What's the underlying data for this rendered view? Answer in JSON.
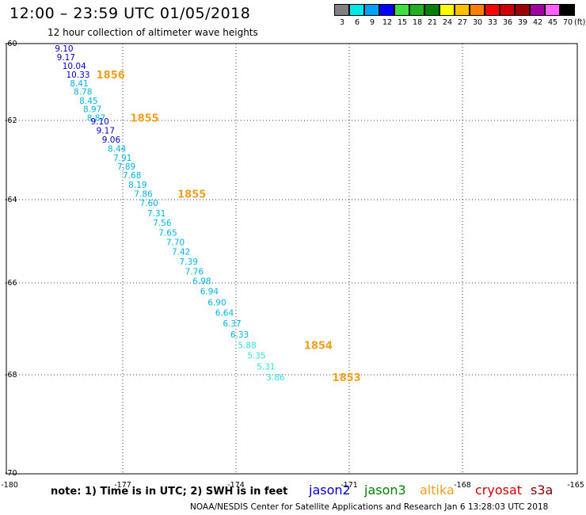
{
  "header": {
    "title": "12:00 – 23:59 UTC 01/05/2018",
    "subtitle": "12 hour collection of altimeter wave heights"
  },
  "legend": {
    "unit": "(ft)",
    "entries": [
      {
        "label": "3",
        "color": "#808080"
      },
      {
        "label": "6",
        "color": "#00e8e8"
      },
      {
        "label": "9",
        "color": "#00a0ff"
      },
      {
        "label": "12",
        "color": "#0000ff"
      },
      {
        "label": "15",
        "color": "#40e040"
      },
      {
        "label": "18",
        "color": "#20b020"
      },
      {
        "label": "21",
        "color": "#008000"
      },
      {
        "label": "24",
        "color": "#ffff00"
      },
      {
        "label": "27",
        "color": "#ffc000"
      },
      {
        "label": "30",
        "color": "#ff8000"
      },
      {
        "label": "33",
        "color": "#ff0000"
      },
      {
        "label": "36",
        "color": "#d00000"
      },
      {
        "label": "39",
        "color": "#a00000"
      },
      {
        "label": "42",
        "color": "#a000a0"
      },
      {
        "label": "45",
        "color": "#ff60ff"
      },
      {
        "label": "70",
        "color": "#000000"
      }
    ]
  },
  "map": {
    "lon_range": [
      -180,
      -165
    ],
    "lat_range": [
      -70,
      -60
    ],
    "x_ticks": [
      "-180",
      "-177",
      "-174",
      "-171",
      "-168",
      "-165"
    ],
    "x_tick_values": [
      -180,
      -177,
      -174,
      -171,
      -168,
      -165
    ],
    "y_ticks": [
      "-60",
      "-62",
      "-64",
      "-66",
      "-68",
      "-70"
    ],
    "y_tick_values": [
      -60,
      -62,
      -64,
      -66,
      -68,
      -70
    ],
    "grid": "dotted",
    "track_colors": {
      "navy": "#0000c8",
      "cyan": "#00b4e6",
      "light": "#30e0e0"
    },
    "observations": [
      {
        "text": "9.10",
        "lon": -178.8,
        "lat": -60.12,
        "color": "navy"
      },
      {
        "text": "9.17",
        "lon": -178.75,
        "lat": -60.35,
        "color": "navy"
      },
      {
        "text": "10.04",
        "lon": -178.6,
        "lat": -60.58,
        "color": "navy"
      },
      {
        "text": "10.33",
        "lon": -178.5,
        "lat": -60.8,
        "color": "navy"
      },
      {
        "text": "8.41",
        "lon": -178.4,
        "lat": -61.03,
        "color": "cyan"
      },
      {
        "text": "8.78",
        "lon": -178.3,
        "lat": -61.25,
        "color": "cyan"
      },
      {
        "text": "8.45",
        "lon": -178.15,
        "lat": -61.48,
        "color": "cyan"
      },
      {
        "text": "8.97",
        "lon": -178.05,
        "lat": -61.7,
        "color": "cyan"
      },
      {
        "text": "8.87",
        "lon": -177.95,
        "lat": -61.93,
        "color": "cyan"
      },
      {
        "text": "9.10",
        "lon": -177.85,
        "lat": -62.02,
        "color": "navy"
      },
      {
        "text": "9.17",
        "lon": -177.7,
        "lat": -62.25,
        "color": "navy"
      },
      {
        "text": "9.06",
        "lon": -177.55,
        "lat": -62.48,
        "color": "navy"
      },
      {
        "text": "8.44",
        "lon": -177.4,
        "lat": -62.71,
        "color": "cyan"
      },
      {
        "text": "7.91",
        "lon": -177.25,
        "lat": -62.94,
        "color": "cyan"
      },
      {
        "text": "7.89",
        "lon": -177.15,
        "lat": -63.16,
        "color": "cyan"
      },
      {
        "text": "7.68",
        "lon": -177.0,
        "lat": -63.38,
        "color": "cyan"
      },
      {
        "text": "8.19",
        "lon": -176.85,
        "lat": -63.62,
        "color": "cyan"
      },
      {
        "text": "7.86",
        "lon": -176.7,
        "lat": -63.85,
        "color": "cyan"
      },
      {
        "text": "7.60",
        "lon": -176.55,
        "lat": -64.08,
        "color": "cyan"
      },
      {
        "text": "7.31",
        "lon": -176.35,
        "lat": -64.32,
        "color": "cyan"
      },
      {
        "text": "7.56",
        "lon": -176.2,
        "lat": -64.55,
        "color": "cyan"
      },
      {
        "text": "7.65",
        "lon": -176.05,
        "lat": -64.79,
        "color": "cyan"
      },
      {
        "text": "7.70",
        "lon": -175.85,
        "lat": -65.02,
        "color": "cyan"
      },
      {
        "text": "7.42",
        "lon": -175.7,
        "lat": -65.25,
        "color": "cyan"
      },
      {
        "text": "7.39",
        "lon": -175.5,
        "lat": -65.49,
        "color": "cyan"
      },
      {
        "text": "7.76",
        "lon": -175.35,
        "lat": -65.72,
        "color": "cyan"
      },
      {
        "text": "6.98",
        "lon": -175.15,
        "lat": -65.95,
        "color": "cyan"
      },
      {
        "text": "6.94",
        "lon": -174.95,
        "lat": -66.18,
        "color": "cyan"
      },
      {
        "text": "6.90",
        "lon": -174.75,
        "lat": -66.42,
        "color": "cyan"
      },
      {
        "text": "6.64",
        "lon": -174.55,
        "lat": -66.65,
        "color": "cyan"
      },
      {
        "text": "6.37",
        "lon": -174.35,
        "lat": -66.88,
        "color": "cyan"
      },
      {
        "text": "6.33",
        "lon": -174.15,
        "lat": -67.12,
        "color": "cyan"
      },
      {
        "text": "5.88",
        "lon": -173.95,
        "lat": -67.35,
        "color": "light"
      },
      {
        "text": "5.35",
        "lon": -173.7,
        "lat": -67.58,
        "color": "light"
      },
      {
        "text": "5.31",
        "lon": -173.45,
        "lat": -67.82,
        "color": "light"
      },
      {
        "text": "3.86",
        "lon": -173.2,
        "lat": -68.05,
        "color": "light"
      }
    ],
    "pass_times": [
      {
        "text": "1856",
        "lon": -177.7,
        "lat": -60.8
      },
      {
        "text": "1855",
        "lon": -176.8,
        "lat": -61.93
      },
      {
        "text": "1855",
        "lon": -175.55,
        "lat": -63.85
      },
      {
        "text": "1854",
        "lon": -172.2,
        "lat": -67.35
      },
      {
        "text": "1853",
        "lon": -171.45,
        "lat": -68.05
      }
    ]
  },
  "footer": {
    "note": "note:  1) Time is in UTC;  2) SWH is in feet",
    "satellites": [
      {
        "name": "jason2",
        "color": "#0000c8"
      },
      {
        "name": "jason3",
        "color": "#008000"
      },
      {
        "name": "altika",
        "color": "#f0a020"
      },
      {
        "name": "cryosat",
        "color": "#d00000"
      },
      {
        "name": "s3a",
        "color": "#800000"
      }
    ],
    "credit": "NOAA/NESDIS Center for Satellite Applications and Research   Jan  6 13:28:03 UTC 2018"
  }
}
